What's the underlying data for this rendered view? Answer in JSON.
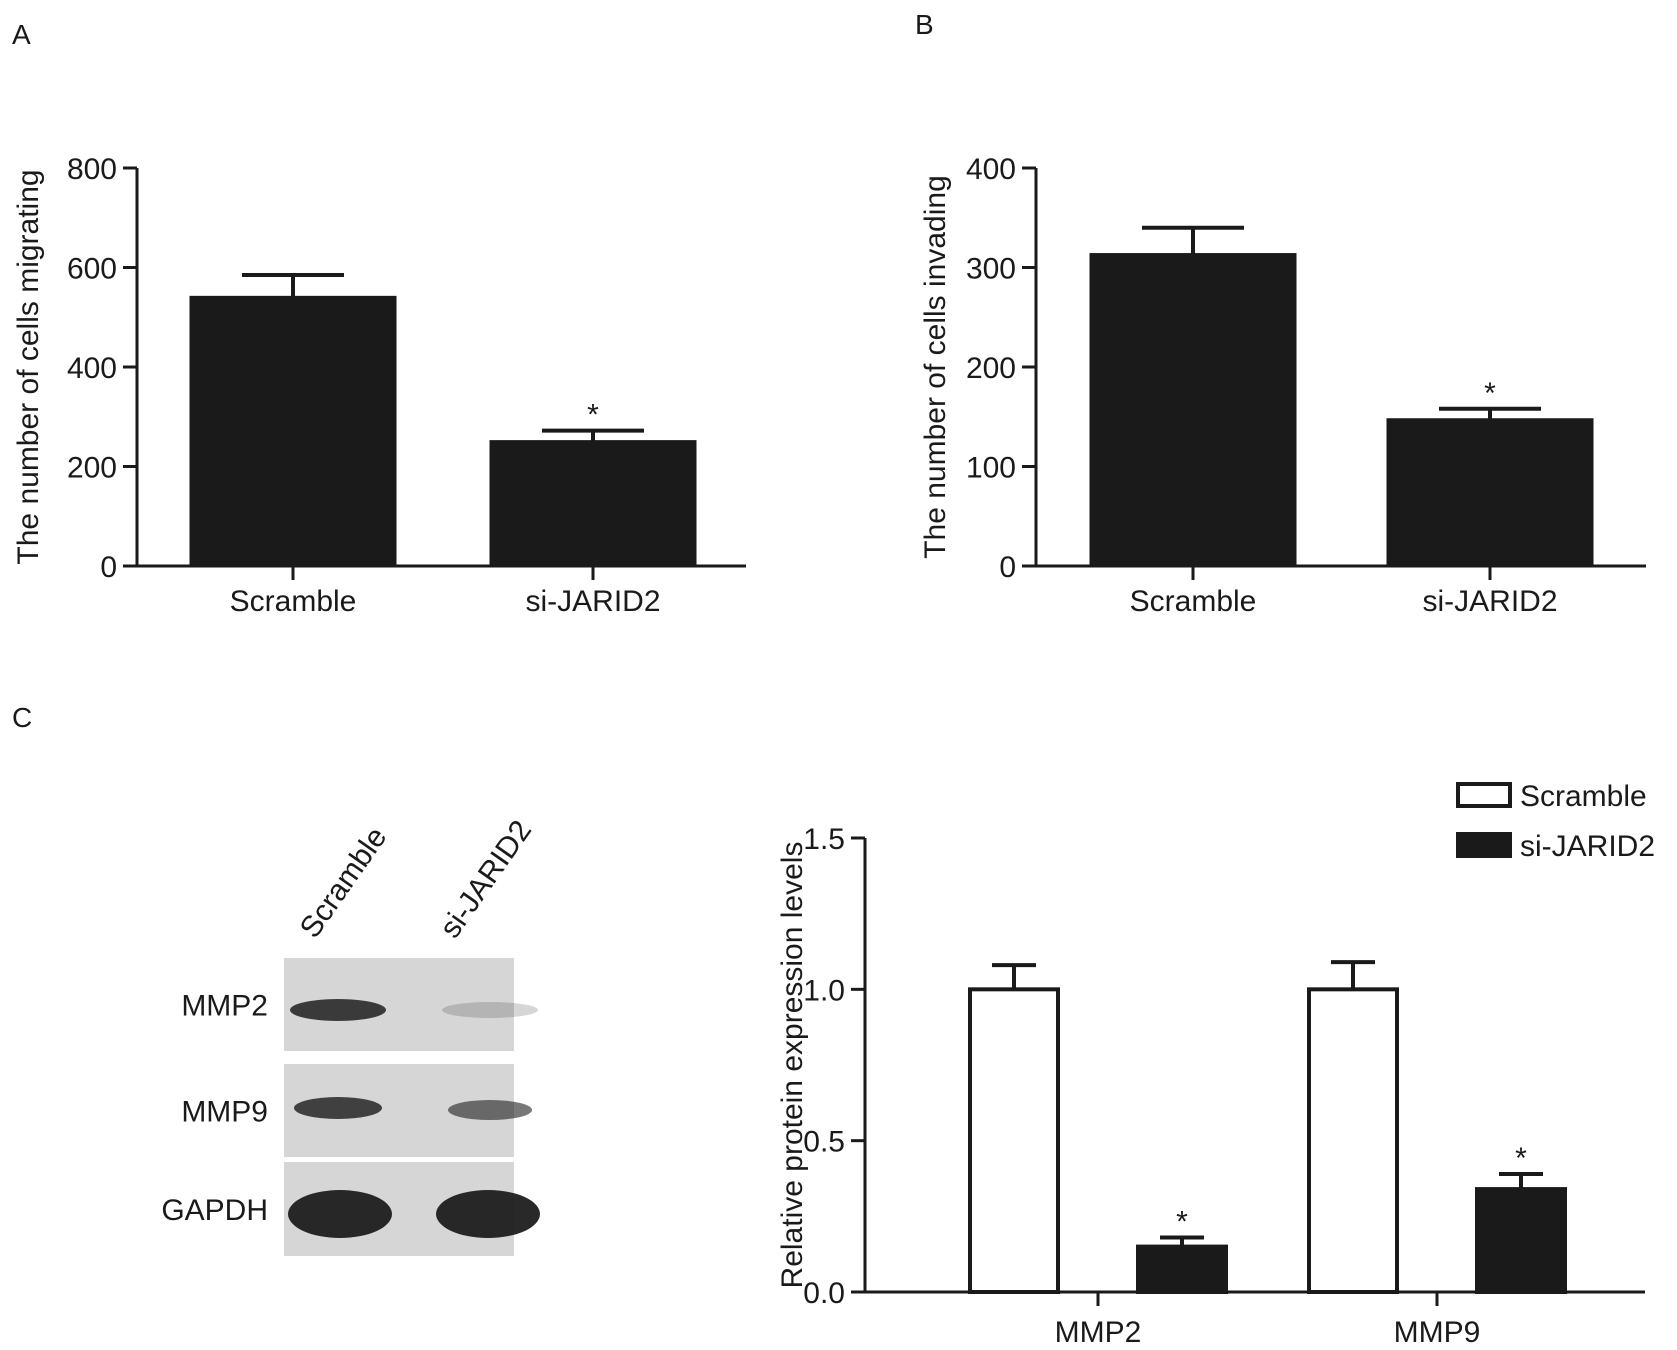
{
  "figure": {
    "panels": [
      {
        "id": "A",
        "letter": "A"
      },
      {
        "id": "B",
        "letter": "B"
      },
      {
        "id": "C",
        "letter": "C"
      }
    ],
    "blot": {
      "lanes": [
        "Scramble",
        "si-JARID2"
      ],
      "rows": [
        "MMP2",
        "MMP9",
        "GAPDH"
      ]
    }
  },
  "chart_data": [
    {
      "panel": "A",
      "type": "bar",
      "categories": [
        "Scramble",
        "si-JARID2"
      ],
      "values": [
        540,
        250
      ],
      "errors": [
        45,
        22
      ],
      "significance": [
        "",
        "*"
      ],
      "ylabel": "The number of cells migrating",
      "ylim": [
        0,
        800
      ],
      "yticks": [
        0,
        200,
        400,
        600,
        800
      ],
      "bar_color": "#1a1a1a"
    },
    {
      "panel": "B",
      "type": "bar",
      "categories": [
        "Scramble",
        "si-JARID2"
      ],
      "values": [
        313,
        147
      ],
      "errors": [
        27,
        11
      ],
      "significance": [
        "",
        "*"
      ],
      "ylabel": "The number of cells invading",
      "ylim": [
        0,
        400
      ],
      "yticks": [
        0,
        100,
        200,
        300,
        400
      ],
      "bar_color": "#1a1a1a"
    },
    {
      "panel": "C",
      "type": "bar",
      "categories": [
        "MMP2",
        "MMP9"
      ],
      "series": [
        {
          "name": "Scramble",
          "values": [
            1.0,
            1.0
          ],
          "errors": [
            0.08,
            0.09
          ],
          "significance": [
            "",
            ""
          ],
          "color": "#ffffff"
        },
        {
          "name": "si-JARID2",
          "values": [
            0.15,
            0.34
          ],
          "errors": [
            0.03,
            0.05
          ],
          "significance": [
            "*",
            "*"
          ],
          "color": "#1a1a1a"
        }
      ],
      "ylabel": "Relative protein expression levels",
      "ylim": [
        0,
        1.5
      ],
      "yticks": [
        "0.0",
        "0.5",
        "1.0",
        "1.5"
      ],
      "legend": "top-right"
    }
  ]
}
